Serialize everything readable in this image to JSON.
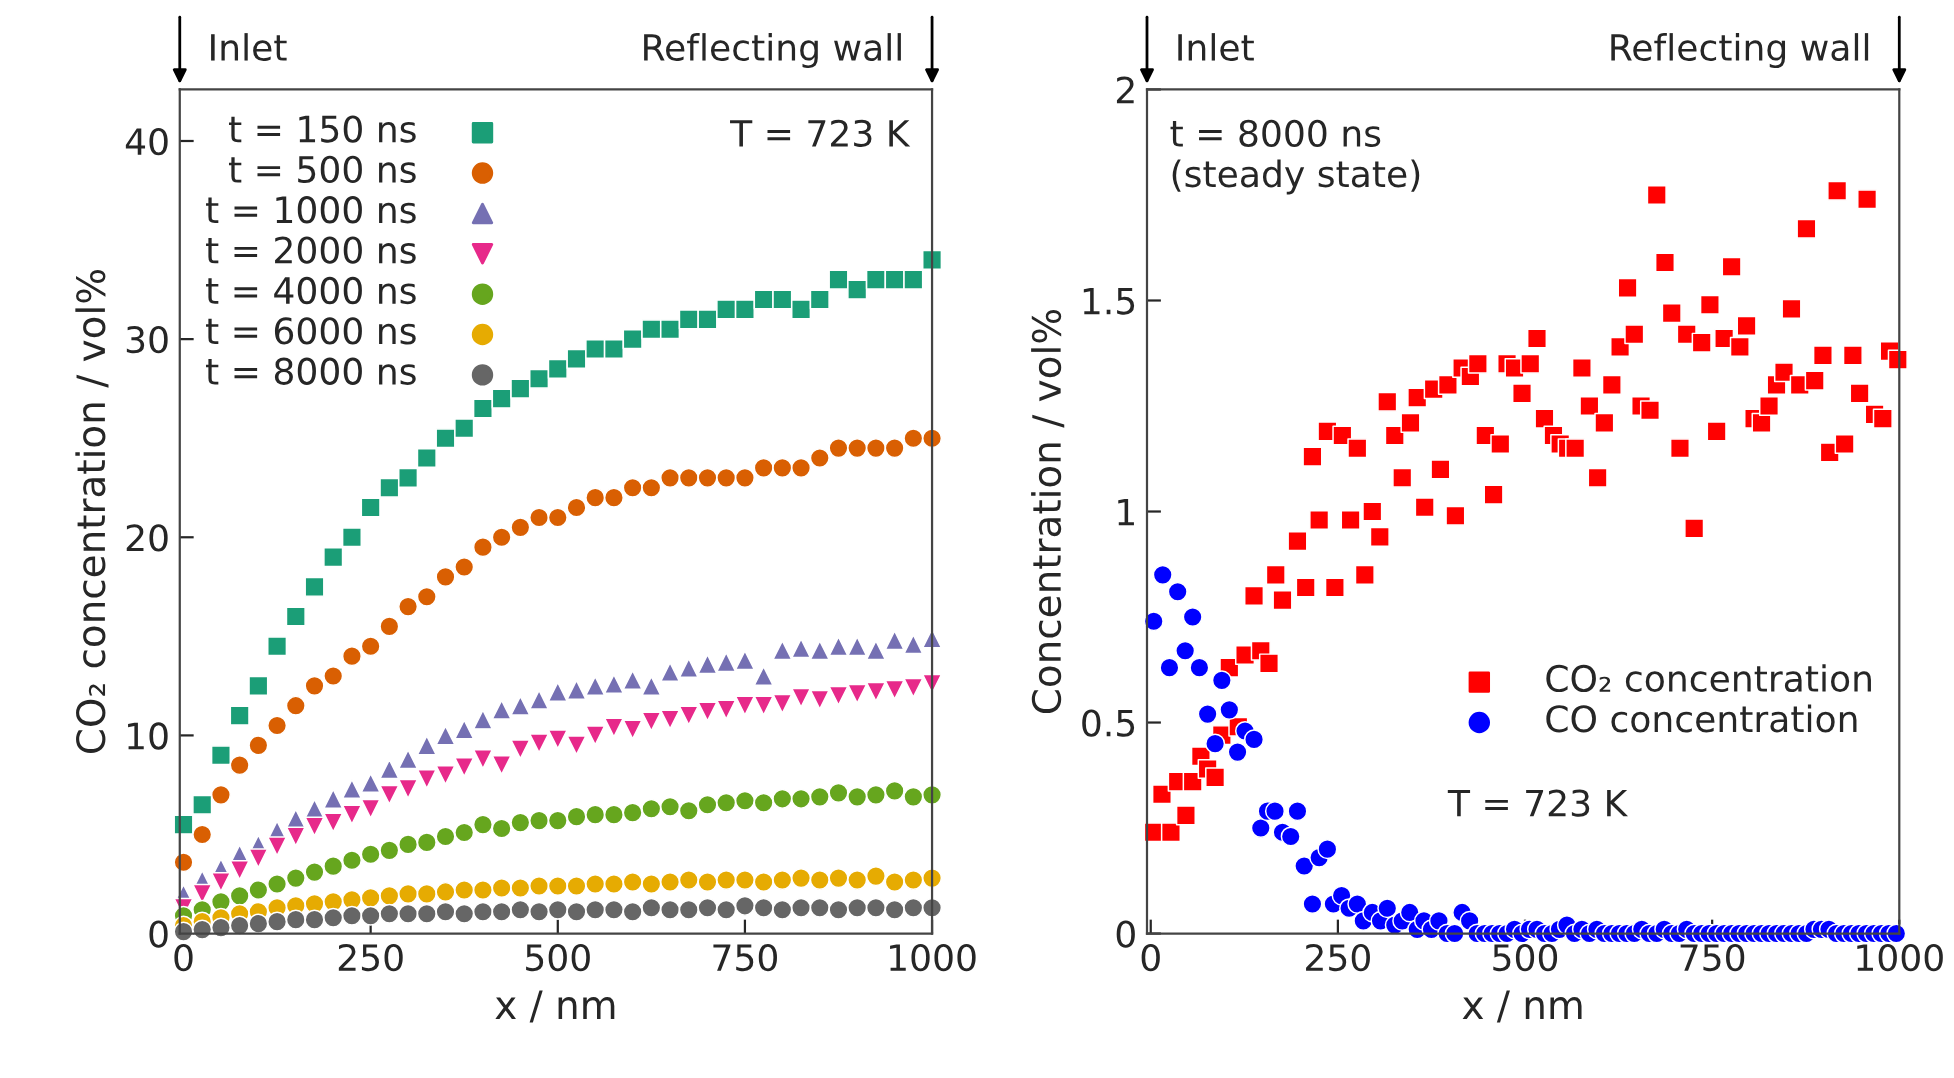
{
  "chart_data": [
    {
      "type": "scatter",
      "xlabel": "x / nm",
      "ylabel": "CO₂ concentration / vol%",
      "xlim": [
        -5,
        1000
      ],
      "ylim": [
        0,
        42.6
      ],
      "xticks": [
        0,
        250,
        500,
        750,
        1000
      ],
      "yticks": [
        0,
        10,
        20,
        30,
        40
      ],
      "legend": "top left",
      "grid": false,
      "annotations": [
        "Inlet",
        "Reflecting wall",
        "T = 723 K"
      ],
      "x": [
        0,
        25,
        50,
        75,
        100,
        125,
        150,
        175,
        200,
        225,
        250,
        275,
        300,
        325,
        350,
        375,
        400,
        425,
        450,
        475,
        500,
        525,
        550,
        575,
        600,
        625,
        650,
        675,
        700,
        725,
        750,
        775,
        800,
        825,
        850,
        875,
        900,
        925,
        950,
        975,
        1000
      ],
      "series": [
        {
          "name": "t = 150 ns",
          "color": "#1b9e77",
          "marker": "square",
          "values": [
            5.5,
            6.5,
            9,
            11,
            12.5,
            14.5,
            16,
            17.5,
            19,
            20,
            21.5,
            22.5,
            23,
            24,
            25,
            25.5,
            26.5,
            27,
            27.5,
            28,
            28.5,
            29,
            29.5,
            29.5,
            30,
            30.5,
            30.5,
            31,
            31,
            31.5,
            31.5,
            32,
            32,
            31.5,
            32,
            33,
            32.5,
            33,
            33,
            33,
            34
          ]
        },
        {
          "name": "t = 500 ns",
          "color": "#d95f02",
          "marker": "circle",
          "values": [
            3.6,
            5,
            7,
            8.5,
            9.5,
            10.5,
            11.5,
            12.5,
            13,
            14,
            14.5,
            15.5,
            16.5,
            17,
            18,
            18.5,
            19.5,
            20,
            20.5,
            21,
            21,
            21.5,
            22,
            22,
            22.5,
            22.5,
            23,
            23,
            23,
            23,
            23,
            23.5,
            23.5,
            23.5,
            24,
            24.5,
            24.5,
            24.5,
            24.5,
            25,
            25
          ]
        },
        {
          "name": "t = 1000 ns",
          "color": "#7570b3",
          "marker": "triangle",
          "values": [
            2,
            2.7,
            3.3,
            4,
            4.5,
            5.2,
            5.8,
            6.3,
            6.8,
            7.3,
            7.6,
            8.3,
            8.8,
            9.5,
            10,
            10.3,
            10.8,
            11.3,
            11.5,
            11.8,
            12.2,
            12.3,
            12.5,
            12.6,
            12.8,
            12.5,
            13.2,
            13.4,
            13.6,
            13.7,
            13.8,
            13,
            14.3,
            14.4,
            14.3,
            14.5,
            14.5,
            14.3,
            14.8,
            14.6,
            14.9
          ]
        },
        {
          "name": "t = 2000 ns",
          "color": "#e7298a",
          "marker": "triangle_down",
          "values": [
            1.3,
            2,
            2.6,
            3.2,
            3.8,
            4.4,
            4.9,
            5.4,
            5.6,
            6,
            6.3,
            7,
            7.3,
            7.8,
            8,
            8.4,
            8.8,
            8.5,
            9.3,
            9.6,
            9.8,
            9.5,
            10,
            10.4,
            10.3,
            10.7,
            10.8,
            11,
            11.2,
            11.3,
            11.5,
            11.5,
            11.6,
            11.9,
            11.8,
            12,
            12.1,
            12.2,
            12.3,
            12.4,
            12.6
          ]
        },
        {
          "name": "t = 4000 ns",
          "color": "#66a61e",
          "marker": "circle",
          "values": [
            0.9,
            1.2,
            1.6,
            1.9,
            2.2,
            2.5,
            2.8,
            3.1,
            3.4,
            3.7,
            4,
            4.2,
            4.5,
            4.6,
            4.9,
            5.1,
            5.5,
            5.3,
            5.6,
            5.7,
            5.7,
            5.9,
            6,
            6,
            6.1,
            6.3,
            6.4,
            6.2,
            6.5,
            6.6,
            6.7,
            6.6,
            6.8,
            6.8,
            6.9,
            7.1,
            6.9,
            7,
            7.2,
            6.9,
            7
          ]
        },
        {
          "name": "t = 6000 ns",
          "color": "#e6ab02",
          "marker": "circle",
          "values": [
            0.4,
            0.6,
            0.8,
            1,
            1.1,
            1.3,
            1.4,
            1.5,
            1.6,
            1.7,
            1.8,
            1.9,
            2,
            2,
            2.1,
            2.2,
            2.2,
            2.3,
            2.3,
            2.4,
            2.4,
            2.4,
            2.5,
            2.5,
            2.6,
            2.5,
            2.6,
            2.7,
            2.6,
            2.7,
            2.7,
            2.6,
            2.7,
            2.8,
            2.7,
            2.8,
            2.7,
            2.9,
            2.6,
            2.7,
            2.8
          ]
        },
        {
          "name": "t = 8000 ns",
          "color": "#666666",
          "marker": "circle",
          "values": [
            0.1,
            0.2,
            0.3,
            0.4,
            0.5,
            0.6,
            0.7,
            0.7,
            0.8,
            0.9,
            0.9,
            1,
            1,
            1,
            1.1,
            1,
            1.1,
            1.1,
            1.2,
            1.1,
            1.2,
            1.1,
            1.2,
            1.2,
            1.1,
            1.3,
            1.2,
            1.2,
            1.3,
            1.2,
            1.4,
            1.3,
            1.2,
            1.3,
            1.3,
            1.2,
            1.3,
            1.3,
            1.2,
            1.3,
            1.3
          ]
        }
      ]
    },
    {
      "type": "scatter",
      "xlabel": "x / nm",
      "ylabel": "Concentration / vol%",
      "xlim": [
        -5,
        1000
      ],
      "ylim": [
        0,
        2
      ],
      "xticks": [
        0,
        250,
        500,
        750,
        1000
      ],
      "yticks": [
        0,
        0.5,
        1,
        1.5,
        2
      ],
      "legend": "lower right",
      "grid": false,
      "annotations": [
        "Inlet",
        "Reflecting wall",
        "t = 8000 ns\n(steady state)",
        "T = 723 K"
      ],
      "series": [
        {
          "name": "CO₂ concentration",
          "color": "#ff0000",
          "marker": "square",
          "x": [
            4,
            15,
            27,
            36,
            47,
            56,
            67,
            76,
            86,
            95,
            105,
            117,
            126,
            138,
            147,
            158,
            167,
            176,
            196,
            207,
            216,
            225,
            236,
            246,
            256,
            267,
            276,
            286,
            296,
            306,
            316,
            326,
            336,
            347,
            356,
            366,
            378,
            387,
            397,
            407,
            416,
            427,
            437,
            447,
            458,
            467,
            476,
            486,
            496,
            507,
            516,
            526,
            538,
            547,
            557,
            567,
            576,
            586,
            597,
            606,
            616,
            627,
            637,
            646,
            655,
            667,
            676,
            687,
            696,
            707,
            716,
            726,
            736,
            747,
            756,
            766,
            776,
            787,
            796,
            806,
            816,
            826,
            836,
            846,
            856,
            867,
            876,
            887,
            898,
            907,
            917,
            927,
            938,
            947,
            957,
            967,
            978,
            987,
            998
          ],
          "values": [
            0.24,
            0.33,
            0.24,
            0.36,
            0.28,
            0.36,
            0.42,
            0.39,
            0.37,
            0.47,
            0.63,
            0.49,
            0.66,
            0.8,
            0.67,
            0.64,
            0.85,
            0.79,
            0.93,
            0.82,
            1.13,
            0.98,
            1.19,
            0.82,
            1.18,
            0.98,
            1.15,
            0.85,
            1.0,
            0.94,
            1.26,
            1.18,
            1.08,
            1.21,
            1.27,
            1.01,
            1.29,
            1.1,
            1.3,
            0.99,
            1.34,
            1.32,
            1.35,
            1.18,
            1.04,
            1.16,
            1.35,
            1.34,
            1.28,
            1.35,
            1.41,
            1.22,
            1.18,
            1.16,
            1.15,
            1.15,
            1.34,
            1.25,
            1.08,
            1.21,
            1.3,
            1.39,
            1.53,
            1.42,
            1.25,
            1.24,
            1.75,
            1.59,
            1.47,
            1.15,
            1.42,
            0.96,
            1.4,
            1.49,
            1.19,
            1.41,
            1.58,
            1.39,
            1.44,
            1.22,
            1.21,
            1.25,
            1.3,
            1.33,
            1.48,
            1.3,
            1.67,
            1.31,
            1.37,
            1.14,
            1.76,
            1.16,
            1.37,
            1.28,
            1.74,
            1.23,
            1.22,
            1.38,
            1.36
          ]
        },
        {
          "name": "CO concentration",
          "color": "#0000ff",
          "marker": "circle",
          "x": [
            4,
            16,
            25,
            36,
            46,
            56,
            65,
            76,
            86,
            95,
            105,
            116,
            126,
            138,
            147,
            156,
            166,
            176,
            187,
            196,
            205,
            216,
            225,
            236,
            244,
            255,
            265,
            276,
            284,
            296,
            307,
            316,
            326,
            336,
            346,
            356,
            365,
            375,
            385,
            396,
            406,
            416,
            426,
            436,
            446,
            456,
            466,
            476,
            486,
            496,
            506,
            516,
            526,
            536,
            546,
            556,
            566,
            576,
            586,
            596,
            606,
            616,
            626,
            636,
            646,
            656,
            666,
            676,
            686,
            696,
            706,
            716,
            726,
            736,
            746,
            756,
            766,
            776,
            786,
            796,
            806,
            816,
            826,
            836,
            846,
            856,
            866,
            876,
            886,
            896,
            906,
            916,
            926,
            936,
            946,
            956,
            966,
            976,
            986,
            996
          ],
          "values": [
            0.74,
            0.85,
            0.63,
            0.81,
            0.67,
            0.75,
            0.63,
            0.52,
            0.45,
            0.6,
            0.53,
            0.43,
            0.48,
            0.46,
            0.25,
            0.29,
            0.29,
            0.24,
            0.23,
            0.29,
            0.16,
            0.07,
            0.18,
            0.2,
            0.07,
            0.09,
            0.06,
            0.07,
            0.03,
            0.05,
            0.03,
            0.06,
            0.02,
            0.03,
            0.05,
            0.01,
            0.03,
            0.01,
            0.03,
            0,
            0,
            0.05,
            0.03,
            0,
            0,
            0,
            0,
            0,
            0.01,
            0,
            0.01,
            0.01,
            0,
            0,
            0.01,
            0.02,
            0,
            0.01,
            0,
            0.01,
            0,
            0,
            0,
            0,
            0,
            0.01,
            0,
            0,
            0.01,
            0,
            0,
            0.01,
            0,
            0,
            0,
            0,
            0,
            0,
            0,
            0,
            0,
            0,
            0,
            0,
            0,
            0,
            0,
            0,
            0.01,
            0.01,
            0.01,
            0,
            0,
            0,
            0,
            0,
            0,
            0,
            0,
            0
          ]
        }
      ]
    }
  ]
}
